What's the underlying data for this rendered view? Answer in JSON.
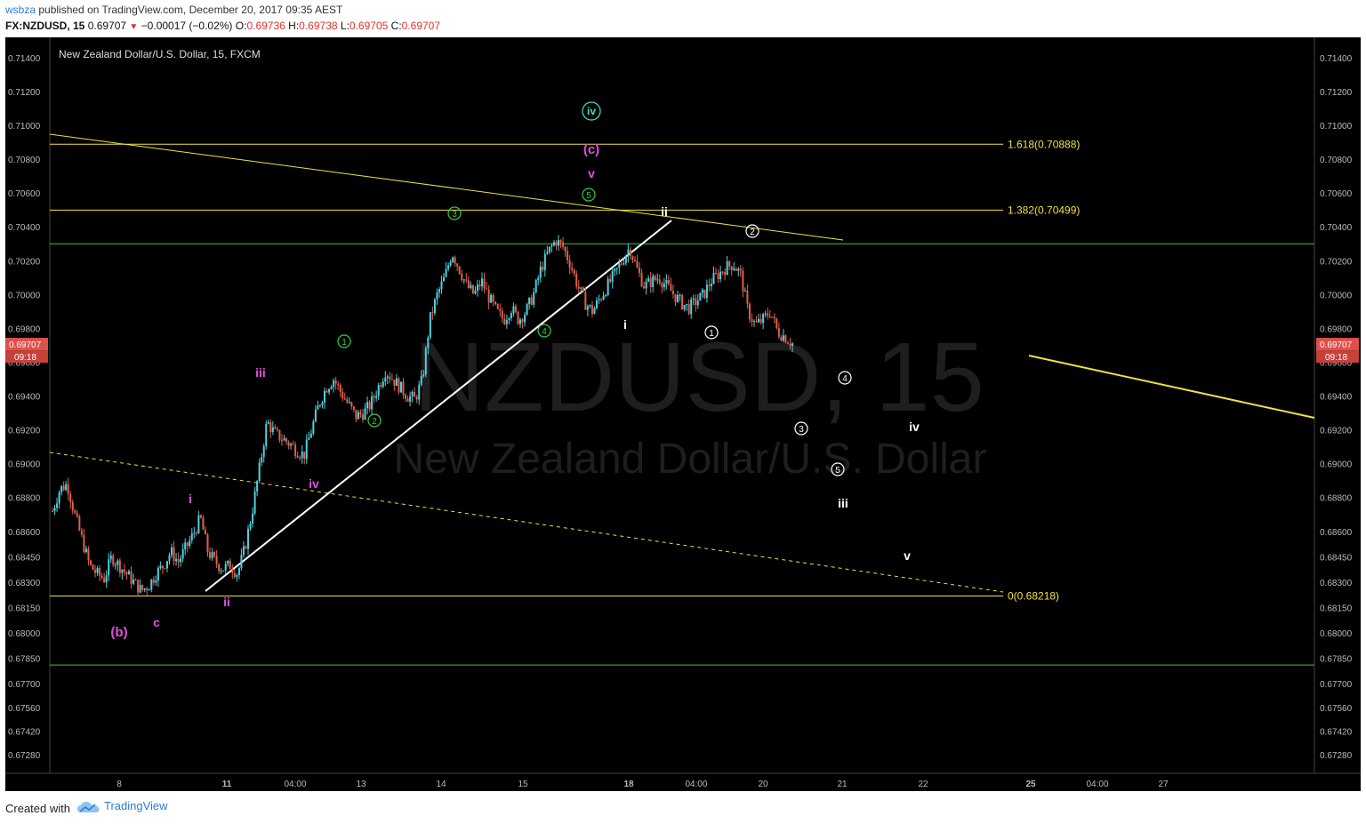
{
  "header": {
    "publisher": "wsbza",
    "published_text": "published on TradingView.com, December 20, 2017 09:35 AEST",
    "symbol": "FX:NZDUSD, 15",
    "last": "0.69707",
    "change": "−0.00017 (−0.02%)",
    "o_label": "O:",
    "o_value": "0.69736",
    "h_label": "H:",
    "h_value": "0.69738",
    "l_label": "L:",
    "l_value": "0.69705",
    "c_label": "C:",
    "c_value": "0.69707"
  },
  "footer": {
    "created_with": "Created with",
    "brand": "TradingView"
  },
  "colors": {
    "background": "#000000",
    "up": "#4fd1e0",
    "down": "#e0604a",
    "fib": "#f0e040",
    "green": "#2fd040",
    "white": "#ffffff",
    "magenta": "#e050e0",
    "teal": "#40e0d0"
  },
  "chart_data": {
    "type": "candlestick",
    "title": "New Zealand Dollar/U.S. Dollar, 15, FXCM",
    "watermark_symbol": "NZDUSD, 15",
    "watermark_name": "New Zealand Dollar/U.S. Dollar",
    "ylim": [
      0.6717,
      0.7152
    ],
    "y_ticks": [
      "0.71400",
      "0.71200",
      "0.71000",
      "0.70800",
      "0.70600",
      "0.70400",
      "0.70200",
      "0.70000",
      "0.69800",
      "0.69600",
      "0.69400",
      "0.69200",
      "0.69000",
      "0.68800",
      "0.68600",
      "0.68450",
      "0.68300",
      "0.68150",
      "0.68000",
      "0.67850",
      "0.67700",
      "0.67560",
      "0.67420",
      "0.67280"
    ],
    "x_ticks": [
      {
        "label": "8",
        "bold": false
      },
      {
        "label": "11",
        "bold": true
      },
      {
        "label": "04:00",
        "bold": false
      },
      {
        "label": "13",
        "bold": false
      },
      {
        "label": "14",
        "bold": false
      },
      {
        "label": "15",
        "bold": false
      },
      {
        "label": "18",
        "bold": true
      },
      {
        "label": "04:00",
        "bold": false
      },
      {
        "label": "20",
        "bold": false
      },
      {
        "label": "21",
        "bold": false
      },
      {
        "label": "22",
        "bold": false
      },
      {
        "label": "25",
        "bold": true
      },
      {
        "label": "04:00",
        "bold": false
      },
      {
        "label": "27",
        "bold": false
      }
    ],
    "last_price": "0.69707",
    "last_time": "09:18",
    "price_path": [
      [
        0.6872,
        0.6885,
        0.6888,
        0.687,
        0.6855,
        0.684,
        0.6835,
        0.6832,
        0.6845,
        0.684,
        0.6835
      ],
      [
        0.683,
        0.6825,
        0.6828,
        0.6835,
        0.684,
        0.6848,
        0.6842,
        0.685,
        0.6858,
        0.6868,
        0.6848
      ],
      [
        0.6842,
        0.6838,
        0.684,
        0.6835,
        0.685,
        0.6872,
        0.6898,
        0.6925,
        0.6918,
        0.6915,
        0.6912
      ],
      [
        0.6908,
        0.6905,
        0.692,
        0.6935,
        0.6945,
        0.695,
        0.6942,
        0.6935,
        0.6928,
        0.693,
        0.6935
      ],
      [
        0.6945,
        0.6955,
        0.695,
        0.6945,
        0.694,
        0.6938,
        0.695,
        0.6985,
        0.7,
        0.701,
        0.7025
      ],
      [
        0.7015,
        0.7005,
        0.7,
        0.7008,
        0.6998,
        0.699,
        0.6985,
        0.6992,
        0.6985,
        0.699,
        0.7
      ],
      [
        0.7015,
        0.7025,
        0.7032,
        0.7028,
        0.7018,
        0.7005,
        0.6995,
        0.699,
        0.6998,
        0.7005,
        0.7012
      ],
      [
        0.702,
        0.7028,
        0.7015,
        0.7005,
        0.7008,
        0.701,
        0.7005,
        0.7,
        0.6995,
        0.6992,
        0.6996
      ],
      [
        0.7,
        0.7008,
        0.7012,
        0.7016,
        0.7018,
        0.7012,
        0.699,
        0.6982,
        0.6985,
        0.699,
        0.6978,
        0.6975,
        0.6971
      ]
    ],
    "fib_levels": [
      {
        "label": "1.618(0.70888)",
        "value": 0.70888
      },
      {
        "label": "1.382(0.70499)",
        "value": 0.70499
      },
      {
        "label": "0(0.68218)",
        "value": 0.68218
      }
    ],
    "green_levels": [
      0.703,
      0.6781
    ],
    "wave_labels": [
      {
        "text": "(b)",
        "color": "magenta",
        "style": "paren"
      },
      {
        "text": "c",
        "color": "magenta",
        "style": "plain"
      },
      {
        "text": "i",
        "color": "magenta",
        "style": "plain"
      },
      {
        "text": "ii",
        "color": "magenta",
        "style": "plain"
      },
      {
        "text": "iii",
        "color": "magenta",
        "style": "plain"
      },
      {
        "text": "iv",
        "color": "magenta",
        "style": "plain"
      },
      {
        "text": "v",
        "color": "magenta",
        "style": "plain"
      },
      {
        "text": "(c)",
        "color": "magenta",
        "style": "paren"
      },
      {
        "text": "iv",
        "color": "teal",
        "style": "circle"
      },
      {
        "text": "1",
        "color": "green",
        "style": "circle"
      },
      {
        "text": "2",
        "color": "green",
        "style": "circle"
      },
      {
        "text": "3",
        "color": "green",
        "style": "circle"
      },
      {
        "text": "4",
        "color": "green",
        "style": "circle"
      },
      {
        "text": "5",
        "color": "green",
        "style": "circle"
      },
      {
        "text": "i",
        "color": "white",
        "style": "plain"
      },
      {
        "text": "ii",
        "color": "white",
        "style": "plain"
      },
      {
        "text": "1",
        "color": "white",
        "style": "circle"
      },
      {
        "text": "2",
        "color": "white",
        "style": "circle"
      },
      {
        "text": "3",
        "color": "white",
        "style": "circle"
      },
      {
        "text": "4",
        "color": "white",
        "style": "circle"
      },
      {
        "text": "5",
        "color": "white",
        "style": "circle"
      },
      {
        "text": "iii",
        "color": "white",
        "style": "plain"
      },
      {
        "text": "iv",
        "color": "white",
        "style": "plain"
      },
      {
        "text": "v",
        "color": "white",
        "style": "plain"
      }
    ]
  }
}
